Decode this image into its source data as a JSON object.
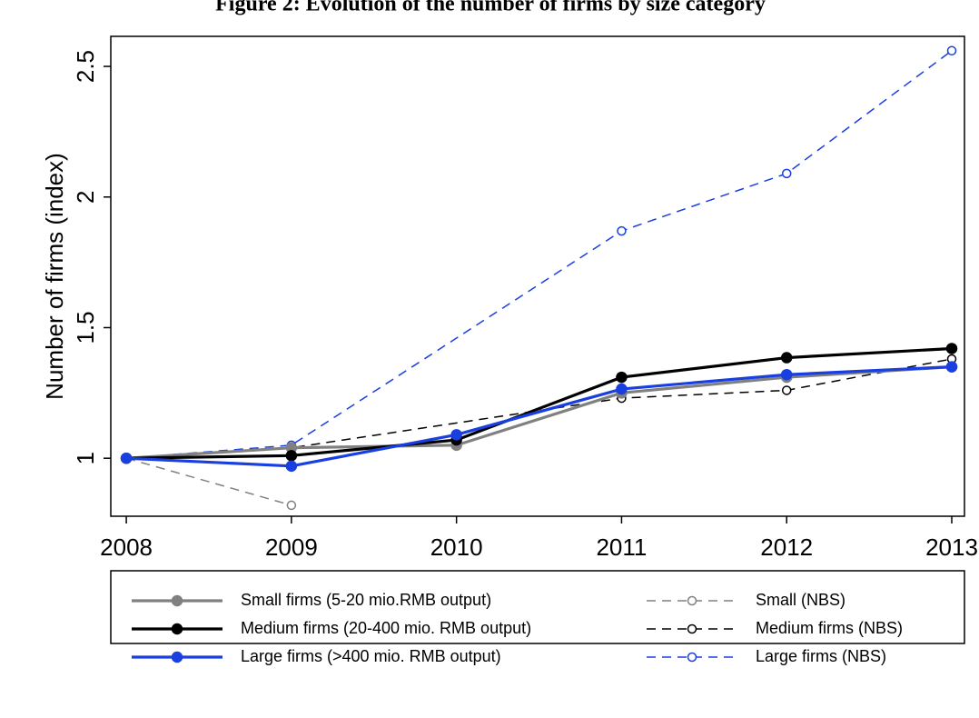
{
  "chart_data": {
    "type": "line",
    "title": "Figure 2: Evolution of the number of firms by size category",
    "y_label": "Number of firms (index)",
    "xlim": [
      2007.906,
      2013.077
    ],
    "xticks": [
      2008,
      2009,
      2010,
      2011,
      2012,
      2013
    ],
    "ylim": [
      0.778,
      2.615
    ],
    "yticks": [
      1,
      1.5,
      2,
      2.5
    ],
    "series": [
      {
        "name": "Small firms (5-20 mio.RMB output)",
        "color": "#808080",
        "dashed": false,
        "hollow": false,
        "x": [
          2008,
          2009,
          2010,
          2011,
          2012,
          2013
        ],
        "values": [
          1,
          1.04,
          1.05,
          1.25,
          1.31,
          1.35
        ]
      },
      {
        "name": "Medium firms (20-400 mio. RMB output)",
        "color": "#000000",
        "dashed": false,
        "hollow": false,
        "x": [
          2008,
          2009,
          2010,
          2011,
          2012,
          2013
        ],
        "values": [
          1,
          1.01,
          1.07,
          1.31,
          1.385,
          1.42
        ]
      },
      {
        "name": "Large firms (>400 mio. RMB output)",
        "color": "#1a3fe0",
        "dashed": false,
        "hollow": false,
        "x": [
          2008,
          2009,
          2010,
          2011,
          2012,
          2013
        ],
        "values": [
          1,
          0.97,
          1.09,
          1.265,
          1.32,
          1.35
        ]
      },
      {
        "name": "Small (NBS)",
        "color": "#808080",
        "dashed": true,
        "hollow": true,
        "x": [
          2008,
          2009
        ],
        "values": [
          1,
          0.82
        ]
      },
      {
        "name": "Medium firms (NBS)",
        "color": "#000000",
        "dashed": true,
        "hollow": true,
        "x": [
          2008,
          2009,
          2011,
          2012,
          2013
        ],
        "values": [
          1,
          1.04,
          1.23,
          1.26,
          1.38
        ]
      },
      {
        "name": "Large firms (NBS)",
        "color": "#1a3fe0",
        "dashed": true,
        "hollow": true,
        "x": [
          2008,
          2009,
          2011,
          2012,
          2013
        ],
        "values": [
          1,
          1.05,
          1.87,
          2.09,
          2.56
        ]
      }
    ]
  }
}
